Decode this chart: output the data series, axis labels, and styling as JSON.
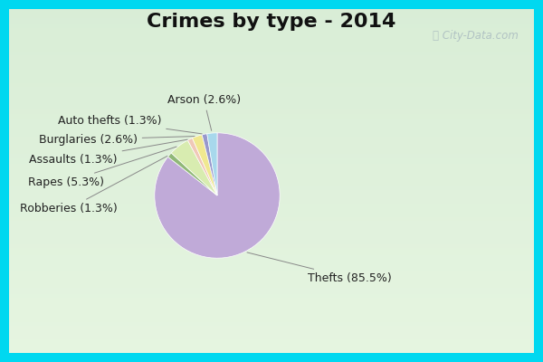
{
  "title": "Crimes by type - 2014",
  "slices": [
    {
      "label": "Thefts (85.5%)",
      "value": 85.5,
      "color": "#c0aad8"
    },
    {
      "label": "Robberies (1.3%)",
      "value": 1.3,
      "color": "#90b878"
    },
    {
      "label": "Rapes (5.3%)",
      "value": 5.3,
      "color": "#d8ecb0"
    },
    {
      "label": "Assaults (1.3%)",
      "value": 1.3,
      "color": "#f0c8b8"
    },
    {
      "label": "Burglaries (2.6%)",
      "value": 2.6,
      "color": "#f0e890"
    },
    {
      "label": "Auto thefts (1.3%)",
      "value": 1.3,
      "color": "#9898cc"
    },
    {
      "label": "Arson (2.6%)",
      "value": 2.6,
      "color": "#a8d8ec"
    }
  ],
  "border_color": "#00d8f0",
  "border_width": 10,
  "bg_grad_top": "#d8eee8",
  "bg_grad_bot": "#c8e8d0",
  "title_fontsize": 16,
  "label_fontsize": 9,
  "watermark": "City-Data.com",
  "thefts_label": "Thefts (85.5%)"
}
